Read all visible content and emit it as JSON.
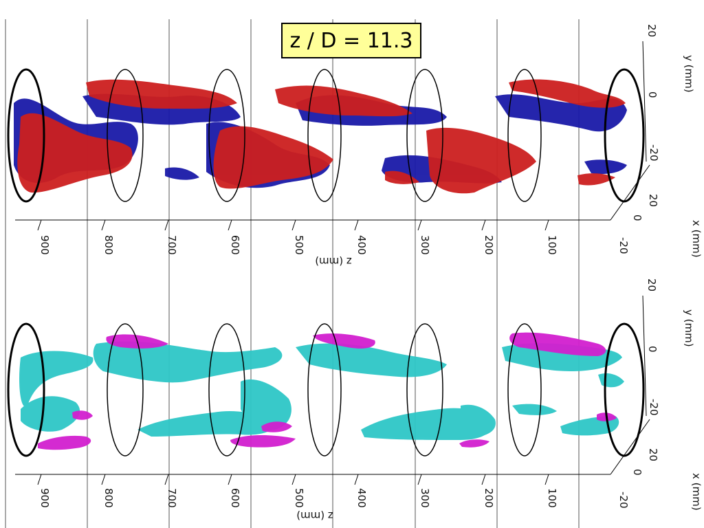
{
  "title": "z / D = 11.3",
  "axes": {
    "z_label": "z (mm)",
    "x_label": "x (mm)",
    "y_label": "y (mm)",
    "z_ticks": [
      "900",
      "800",
      "700",
      "600",
      "500",
      "400",
      "300",
      "200",
      "100"
    ],
    "x_ticks": [
      "-20",
      "0",
      "20"
    ],
    "y_ticks": [
      "20",
      "0",
      "-20"
    ]
  },
  "colors": {
    "panel_top_positive": "#cc1f1f",
    "panel_top_negative": "#1a1aa8",
    "panel_bottom_primary": "#2ec7c7",
    "panel_bottom_secondary": "#d21fcf"
  }
}
